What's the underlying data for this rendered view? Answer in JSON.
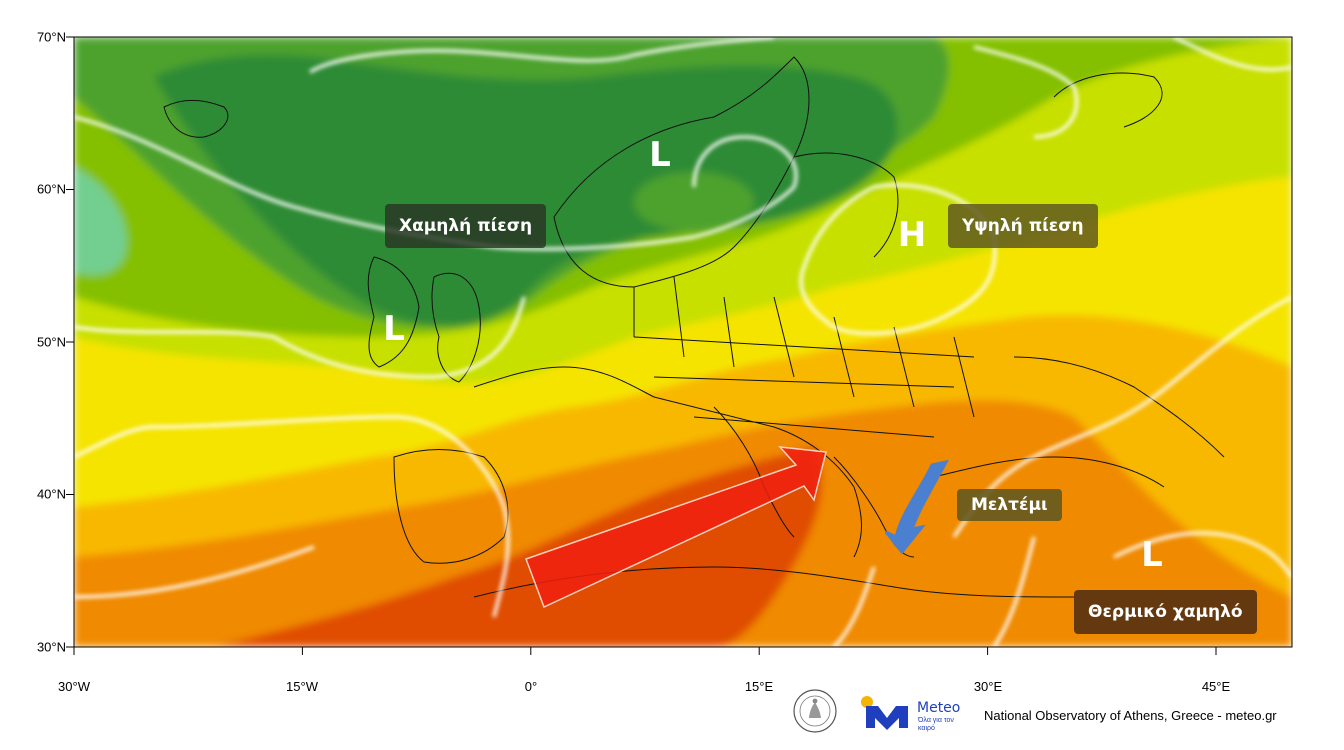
{
  "map": {
    "latitude_labels": [
      "70°N",
      "60°N",
      "50°N",
      "40°N",
      "30°N"
    ],
    "longitude_labels": [
      "30°W",
      "15°W",
      "0°",
      "15°E",
      "30°E",
      "45°E"
    ],
    "colors": {
      "deep_green": "#2e8b35",
      "green": "#4ea22f",
      "light_green": "#84c000",
      "yellow_green": "#c8e000",
      "yellow": "#f5e400",
      "amber": "#f8b800",
      "orange": "#f08a00",
      "red_orange": "#e04d00",
      "cyan_green": "#72cf90"
    },
    "annotations": [
      {
        "id": "low-pressure",
        "text": "Χαμηλή πίεση"
      },
      {
        "id": "high-pressure",
        "text": "Υψηλή πίεση"
      },
      {
        "id": "meltemi",
        "text": "Μελτέμι"
      },
      {
        "id": "thermal-low",
        "text": "Θερμικό χαμηλό"
      }
    ],
    "pressure_marks": [
      {
        "id": "low-scandinavia",
        "letter": "L"
      },
      {
        "id": "low-ireland",
        "letter": "L"
      },
      {
        "id": "high-russia",
        "letter": "H"
      },
      {
        "id": "low-middle-east",
        "letter": "L"
      }
    ],
    "arrows": [
      {
        "id": "warm-air-arrow",
        "color": "#f02010"
      },
      {
        "id": "meltemi-arrow",
        "color": "#4b7fd0"
      }
    ]
  },
  "footer": {
    "meteo_brand": "Meteo",
    "meteo_tagline": "Όλα για τον καιρό",
    "credit": "National Observatory of Athens, Greece - meteo.gr"
  }
}
